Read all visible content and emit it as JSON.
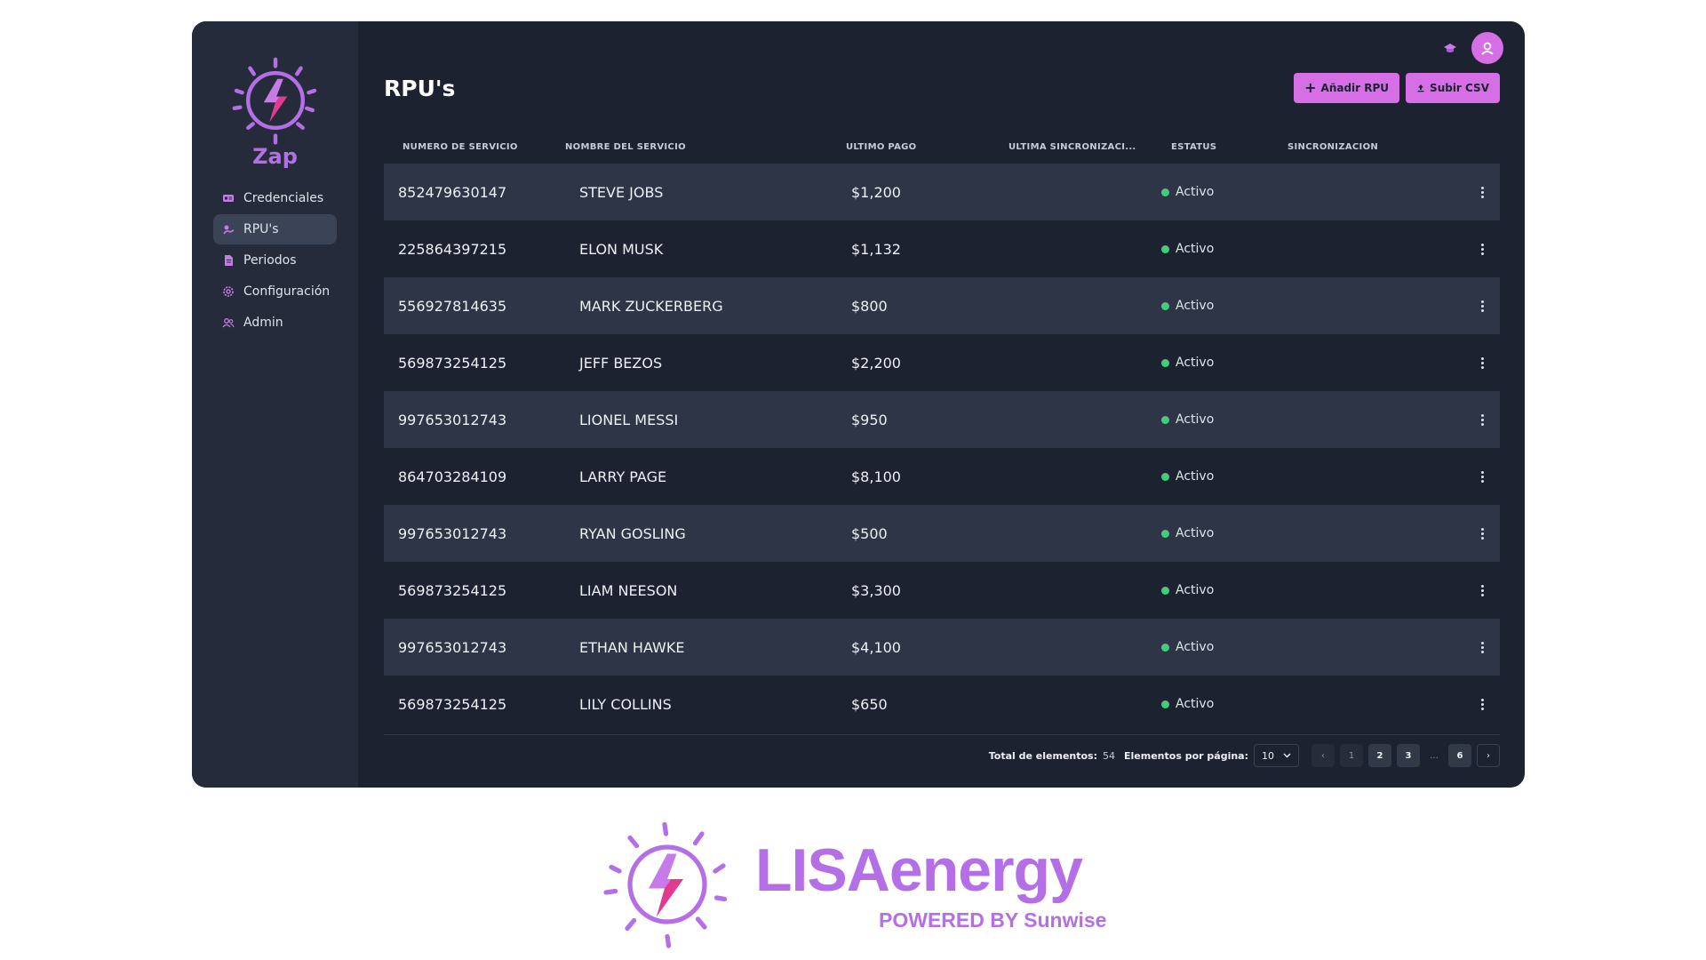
{
  "app": {
    "name": "Zap",
    "accent": "#d66ee6",
    "logo_color": "#b56fe6",
    "status_color": "#3fcf7a"
  },
  "sidebar": {
    "items": [
      {
        "label": "Credenciales",
        "icon": "credentials-icon",
        "active": false
      },
      {
        "label": "RPU's",
        "icon": "rpu-icon",
        "active": true
      },
      {
        "label": "Periodos",
        "icon": "document-icon",
        "active": false
      },
      {
        "label": "Configuración",
        "icon": "gear-icon",
        "active": false
      },
      {
        "label": "Admin",
        "icon": "users-icon",
        "active": false
      }
    ]
  },
  "header": {
    "title": "RPU's",
    "add_button": "Añadir RPU",
    "upload_button": "Subir CSV"
  },
  "table": {
    "columns": [
      "NÚMERO DE SERVICIO",
      "NOMBRE DEL SERVICIO",
      "ÚLTIMO PAGO",
      "ÚLTIMA SINCRONIZACI...",
      "ESTATUS",
      "SINCRONIZACIÓN"
    ],
    "rows": [
      {
        "numero": "852479630147",
        "nombre": "STEVE JOBS",
        "pago": "$1,200",
        "estatus": "Activo"
      },
      {
        "numero": "225864397215",
        "nombre": "ELON MUSK",
        "pago": "$1,132",
        "estatus": "Activo"
      },
      {
        "numero": "556927814635",
        "nombre": "MARK ZUCKERBERG",
        "pago": "$800",
        "estatus": "Activo"
      },
      {
        "numero": "569873254125",
        "nombre": "JEFF BEZOS",
        "pago": "$2,200",
        "estatus": "Activo"
      },
      {
        "numero": "997653012743",
        "nombre": "LIONEL MESSI",
        "pago": "$950",
        "estatus": "Activo"
      },
      {
        "numero": "864703284109",
        "nombre": "LARRY PAGE",
        "pago": "$8,100",
        "estatus": "Activo"
      },
      {
        "numero": "997653012743",
        "nombre": "RYAN GOSLING",
        "pago": "$500",
        "estatus": "Activo"
      },
      {
        "numero": "569873254125",
        "nombre": "LIAM NEESON",
        "pago": "$3,300",
        "estatus": "Activo"
      },
      {
        "numero": "997653012743",
        "nombre": "ETHAN HAWKE",
        "pago": "$4,100",
        "estatus": "Activo"
      },
      {
        "numero": "569873254125",
        "nombre": "LILY COLLINS",
        "pago": "$650",
        "estatus": "Activo"
      }
    ]
  },
  "pagination": {
    "total_label": "Total de elementos:",
    "total_value": "54",
    "per_page_label": "Elementos por página:",
    "per_page_value": "10",
    "prev": "‹",
    "next": "›",
    "pages": [
      "1",
      "2",
      "3"
    ],
    "ellipsis": "...",
    "last_page": "6"
  },
  "brand": {
    "name": "LISAenergy",
    "powered": "POWERED BY Sunwise"
  }
}
